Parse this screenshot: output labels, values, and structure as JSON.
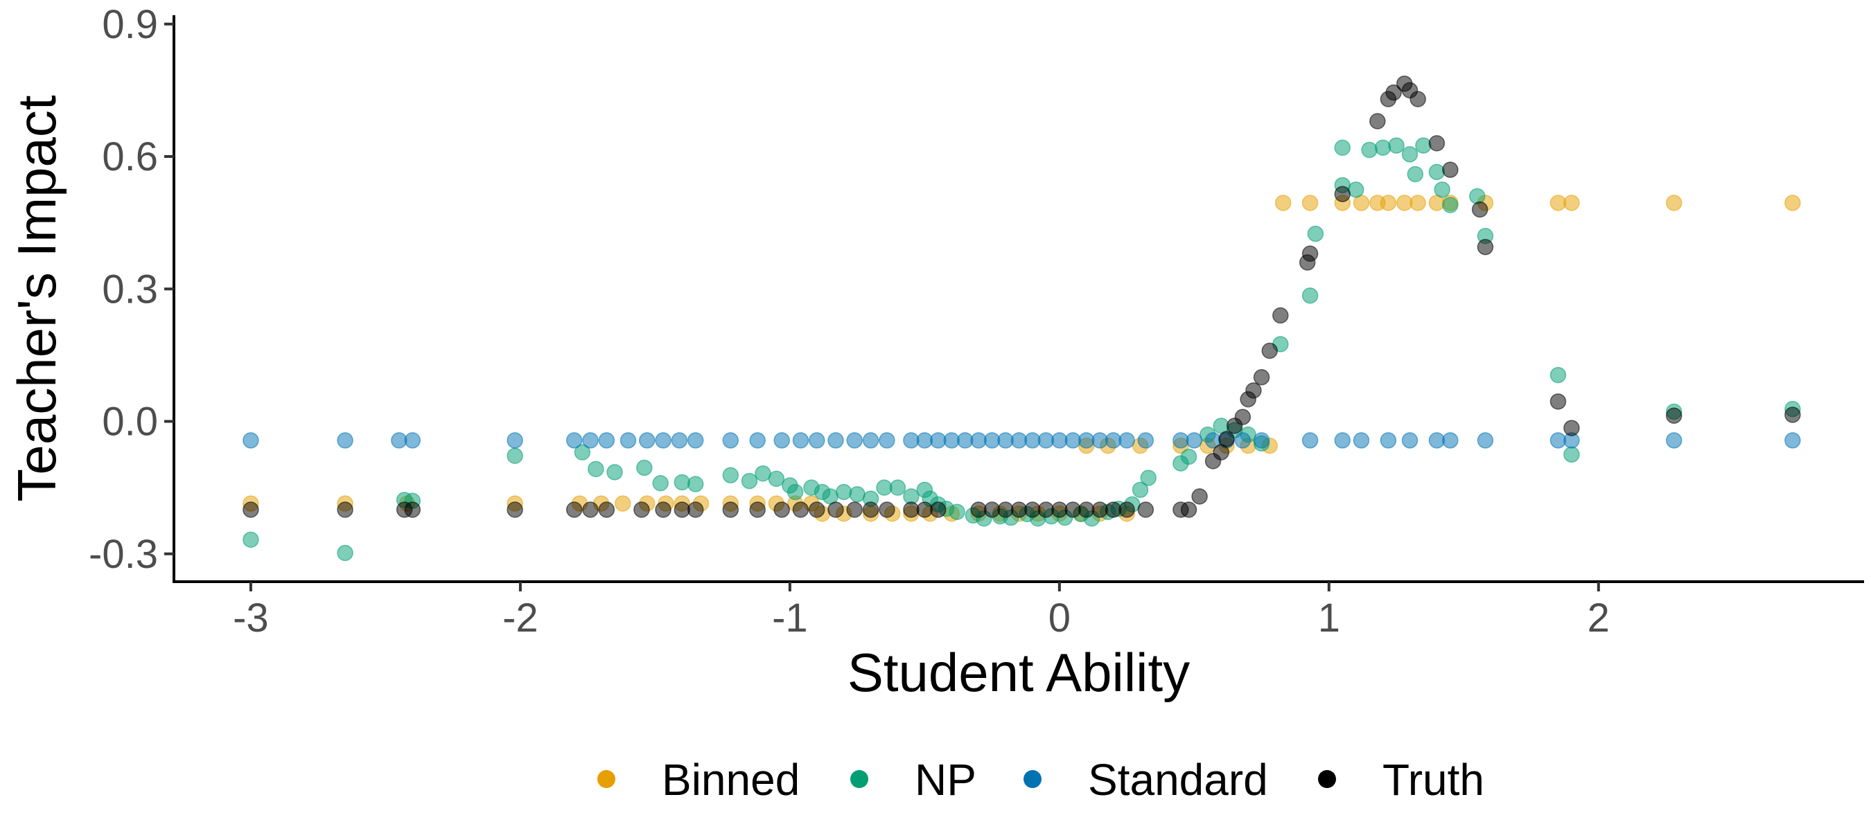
{
  "chart_data": {
    "type": "scatter",
    "title": "",
    "xlabel": "Student Ability",
    "ylabel": "Teacher's Impact",
    "xlim": [
      -3.28,
      2.98
    ],
    "ylim": [
      -0.36,
      0.92
    ],
    "xticks": [
      -3,
      -2,
      -1,
      0,
      1,
      2
    ],
    "xtick_labels": [
      "-3",
      "-2",
      "-1",
      "0",
      "1",
      "2"
    ],
    "yticks": [
      -0.3,
      0.0,
      0.3,
      0.6,
      0.9
    ],
    "ytick_labels": [
      "-0.3",
      "0.0",
      "0.3",
      "0.6",
      "0.9"
    ],
    "grid": false,
    "legend_position": "bottom",
    "series": [
      {
        "name": "Binned",
        "color": "#E69F00",
        "points": [
          [
            -3.0,
            -0.186
          ],
          [
            -2.65,
            -0.186
          ],
          [
            -2.42,
            -0.186
          ],
          [
            -2.02,
            -0.186
          ],
          [
            -1.78,
            -0.186
          ],
          [
            -1.7,
            -0.186
          ],
          [
            -1.62,
            -0.186
          ],
          [
            -1.53,
            -0.186
          ],
          [
            -1.46,
            -0.186
          ],
          [
            -1.4,
            -0.186
          ],
          [
            -1.33,
            -0.186
          ],
          [
            -1.22,
            -0.186
          ],
          [
            -1.12,
            -0.186
          ],
          [
            -1.05,
            -0.186
          ],
          [
            -0.98,
            -0.186
          ],
          [
            -0.92,
            -0.186
          ],
          [
            -0.88,
            -0.209
          ],
          [
            -0.8,
            -0.209
          ],
          [
            -0.7,
            -0.209
          ],
          [
            -0.62,
            -0.209
          ],
          [
            -0.55,
            -0.209
          ],
          [
            -0.48,
            -0.209
          ],
          [
            -0.4,
            -0.209
          ],
          [
            -0.3,
            -0.209
          ],
          [
            -0.22,
            -0.209
          ],
          [
            -0.15,
            -0.209
          ],
          [
            -0.08,
            -0.209
          ],
          [
            0.0,
            -0.209
          ],
          [
            0.08,
            -0.209
          ],
          [
            0.15,
            -0.209
          ],
          [
            0.25,
            -0.209
          ],
          [
            0.1,
            -0.055
          ],
          [
            0.18,
            -0.055
          ],
          [
            0.3,
            -0.055
          ],
          [
            0.45,
            -0.055
          ],
          [
            0.55,
            -0.055
          ],
          [
            0.62,
            -0.055
          ],
          [
            0.7,
            -0.055
          ],
          [
            0.78,
            -0.055
          ],
          [
            0.83,
            0.495
          ],
          [
            0.93,
            0.495
          ],
          [
            1.05,
            0.495
          ],
          [
            1.12,
            0.495
          ],
          [
            1.18,
            0.495
          ],
          [
            1.22,
            0.495
          ],
          [
            1.28,
            0.495
          ],
          [
            1.33,
            0.495
          ],
          [
            1.4,
            0.495
          ],
          [
            1.45,
            0.495
          ],
          [
            1.58,
            0.495
          ],
          [
            1.85,
            0.495
          ],
          [
            1.9,
            0.495
          ],
          [
            2.28,
            0.495
          ],
          [
            2.72,
            0.495
          ]
        ]
      },
      {
        "name": "NP",
        "color": "#009E73",
        "points": [
          [
            -3.0,
            -0.268
          ],
          [
            -2.65,
            -0.298
          ],
          [
            -2.43,
            -0.178
          ],
          [
            -2.4,
            -0.18
          ],
          [
            -2.02,
            -0.078
          ],
          [
            -1.77,
            -0.07
          ],
          [
            -1.72,
            -0.108
          ],
          [
            -1.65,
            -0.115
          ],
          [
            -1.54,
            -0.105
          ],
          [
            -1.48,
            -0.14
          ],
          [
            -1.4,
            -0.138
          ],
          [
            -1.35,
            -0.142
          ],
          [
            -1.22,
            -0.122
          ],
          [
            -1.15,
            -0.135
          ],
          [
            -1.1,
            -0.118
          ],
          [
            -1.05,
            -0.13
          ],
          [
            -1.0,
            -0.145
          ],
          [
            -0.98,
            -0.16
          ],
          [
            -0.92,
            -0.15
          ],
          [
            -0.88,
            -0.16
          ],
          [
            -0.85,
            -0.17
          ],
          [
            -0.8,
            -0.16
          ],
          [
            -0.75,
            -0.165
          ],
          [
            -0.7,
            -0.175
          ],
          [
            -0.65,
            -0.15
          ],
          [
            -0.6,
            -0.15
          ],
          [
            -0.55,
            -0.17
          ],
          [
            -0.5,
            -0.155
          ],
          [
            -0.48,
            -0.175
          ],
          [
            -0.45,
            -0.188
          ],
          [
            -0.42,
            -0.198
          ],
          [
            -0.38,
            -0.205
          ],
          [
            -0.32,
            -0.213
          ],
          [
            -0.28,
            -0.22
          ],
          [
            -0.22,
            -0.215
          ],
          [
            -0.18,
            -0.218
          ],
          [
            -0.12,
            -0.21
          ],
          [
            -0.08,
            -0.22
          ],
          [
            -0.03,
            -0.215
          ],
          [
            0.02,
            -0.218
          ],
          [
            0.08,
            -0.21
          ],
          [
            0.12,
            -0.22
          ],
          [
            0.18,
            -0.205
          ],
          [
            0.22,
            -0.198
          ],
          [
            0.27,
            -0.188
          ],
          [
            0.3,
            -0.155
          ],
          [
            0.33,
            -0.128
          ],
          [
            0.45,
            -0.095
          ],
          [
            0.48,
            -0.08
          ],
          [
            0.55,
            -0.03
          ],
          [
            0.6,
            -0.01
          ],
          [
            0.65,
            -0.02
          ],
          [
            0.7,
            -0.03
          ],
          [
            0.75,
            -0.05
          ],
          [
            0.82,
            0.175
          ],
          [
            0.93,
            0.285
          ],
          [
            0.95,
            0.425
          ],
          [
            1.05,
            0.535
          ],
          [
            1.05,
            0.62
          ],
          [
            1.1,
            0.525
          ],
          [
            1.15,
            0.615
          ],
          [
            1.2,
            0.62
          ],
          [
            1.25,
            0.625
          ],
          [
            1.3,
            0.605
          ],
          [
            1.32,
            0.56
          ],
          [
            1.35,
            0.625
          ],
          [
            1.4,
            0.565
          ],
          [
            1.42,
            0.525
          ],
          [
            1.45,
            0.49
          ],
          [
            1.55,
            0.51
          ],
          [
            1.58,
            0.42
          ],
          [
            1.85,
            0.105
          ],
          [
            1.9,
            -0.075
          ],
          [
            2.28,
            0.022
          ],
          [
            2.72,
            0.028
          ]
        ]
      },
      {
        "name": "Standard",
        "color": "#0072B2",
        "points": [
          [
            -3.0,
            -0.043
          ],
          [
            -2.65,
            -0.043
          ],
          [
            -2.45,
            -0.043
          ],
          [
            -2.4,
            -0.043
          ],
          [
            -2.02,
            -0.043
          ],
          [
            -1.8,
            -0.043
          ],
          [
            -1.74,
            -0.043
          ],
          [
            -1.68,
            -0.043
          ],
          [
            -1.6,
            -0.043
          ],
          [
            -1.53,
            -0.043
          ],
          [
            -1.47,
            -0.043
          ],
          [
            -1.41,
            -0.043
          ],
          [
            -1.35,
            -0.043
          ],
          [
            -1.22,
            -0.043
          ],
          [
            -1.12,
            -0.043
          ],
          [
            -1.03,
            -0.043
          ],
          [
            -0.96,
            -0.043
          ],
          [
            -0.9,
            -0.043
          ],
          [
            -0.83,
            -0.043
          ],
          [
            -0.76,
            -0.043
          ],
          [
            -0.7,
            -0.043
          ],
          [
            -0.64,
            -0.043
          ],
          [
            -0.55,
            -0.043
          ],
          [
            -0.5,
            -0.043
          ],
          [
            -0.45,
            -0.043
          ],
          [
            -0.4,
            -0.043
          ],
          [
            -0.35,
            -0.043
          ],
          [
            -0.3,
            -0.043
          ],
          [
            -0.25,
            -0.043
          ],
          [
            -0.2,
            -0.043
          ],
          [
            -0.15,
            -0.043
          ],
          [
            -0.1,
            -0.043
          ],
          [
            -0.05,
            -0.043
          ],
          [
            0.0,
            -0.043
          ],
          [
            0.05,
            -0.043
          ],
          [
            0.1,
            -0.043
          ],
          [
            0.15,
            -0.043
          ],
          [
            0.2,
            -0.043
          ],
          [
            0.25,
            -0.043
          ],
          [
            0.32,
            -0.043
          ],
          [
            0.45,
            -0.043
          ],
          [
            0.5,
            -0.043
          ],
          [
            0.57,
            -0.043
          ],
          [
            0.62,
            -0.043
          ],
          [
            0.68,
            -0.043
          ],
          [
            0.75,
            -0.043
          ],
          [
            0.93,
            -0.043
          ],
          [
            1.05,
            -0.043
          ],
          [
            1.12,
            -0.043
          ],
          [
            1.22,
            -0.043
          ],
          [
            1.3,
            -0.043
          ],
          [
            1.4,
            -0.043
          ],
          [
            1.45,
            -0.043
          ],
          [
            1.58,
            -0.043
          ],
          [
            1.85,
            -0.043
          ],
          [
            1.9,
            -0.043
          ],
          [
            2.28,
            -0.043
          ],
          [
            2.72,
            -0.043
          ]
        ]
      },
      {
        "name": "Truth",
        "color": "#000000",
        "points": [
          [
            -3.0,
            -0.2
          ],
          [
            -2.65,
            -0.2
          ],
          [
            -2.43,
            -0.2
          ],
          [
            -2.4,
            -0.2
          ],
          [
            -2.02,
            -0.2
          ],
          [
            -1.8,
            -0.2
          ],
          [
            -1.74,
            -0.2
          ],
          [
            -1.68,
            -0.2
          ],
          [
            -1.55,
            -0.2
          ],
          [
            -1.47,
            -0.2
          ],
          [
            -1.4,
            -0.2
          ],
          [
            -1.35,
            -0.2
          ],
          [
            -1.22,
            -0.2
          ],
          [
            -1.12,
            -0.2
          ],
          [
            -1.03,
            -0.2
          ],
          [
            -0.96,
            -0.2
          ],
          [
            -0.9,
            -0.2
          ],
          [
            -0.83,
            -0.2
          ],
          [
            -0.76,
            -0.2
          ],
          [
            -0.7,
            -0.2
          ],
          [
            -0.64,
            -0.2
          ],
          [
            -0.55,
            -0.2
          ],
          [
            -0.5,
            -0.2
          ],
          [
            -0.45,
            -0.2
          ],
          [
            -0.3,
            -0.2
          ],
          [
            -0.25,
            -0.2
          ],
          [
            -0.2,
            -0.2
          ],
          [
            -0.15,
            -0.2
          ],
          [
            -0.1,
            -0.2
          ],
          [
            -0.05,
            -0.2
          ],
          [
            0.0,
            -0.2
          ],
          [
            0.05,
            -0.2
          ],
          [
            0.1,
            -0.2
          ],
          [
            0.15,
            -0.2
          ],
          [
            0.2,
            -0.2
          ],
          [
            0.25,
            -0.2
          ],
          [
            0.32,
            -0.2
          ],
          [
            0.45,
            -0.2
          ],
          [
            0.48,
            -0.2
          ],
          [
            0.52,
            -0.17
          ],
          [
            0.57,
            -0.09
          ],
          [
            0.6,
            -0.07
          ],
          [
            0.62,
            -0.04
          ],
          [
            0.65,
            -0.01
          ],
          [
            0.68,
            0.01
          ],
          [
            0.7,
            0.05
          ],
          [
            0.72,
            0.07
          ],
          [
            0.75,
            0.1
          ],
          [
            0.78,
            0.16
          ],
          [
            0.82,
            0.24
          ],
          [
            0.92,
            0.36
          ],
          [
            0.93,
            0.38
          ],
          [
            1.05,
            0.515
          ],
          [
            1.18,
            0.68
          ],
          [
            1.22,
            0.73
          ],
          [
            1.24,
            0.745
          ],
          [
            1.28,
            0.765
          ],
          [
            1.3,
            0.75
          ],
          [
            1.33,
            0.73
          ],
          [
            1.4,
            0.63
          ],
          [
            1.45,
            0.57
          ],
          [
            1.56,
            0.48
          ],
          [
            1.58,
            0.395
          ],
          [
            1.85,
            0.045
          ],
          [
            1.9,
            -0.015
          ],
          [
            2.28,
            0.013
          ],
          [
            2.72,
            0.015
          ]
        ]
      }
    ]
  }
}
